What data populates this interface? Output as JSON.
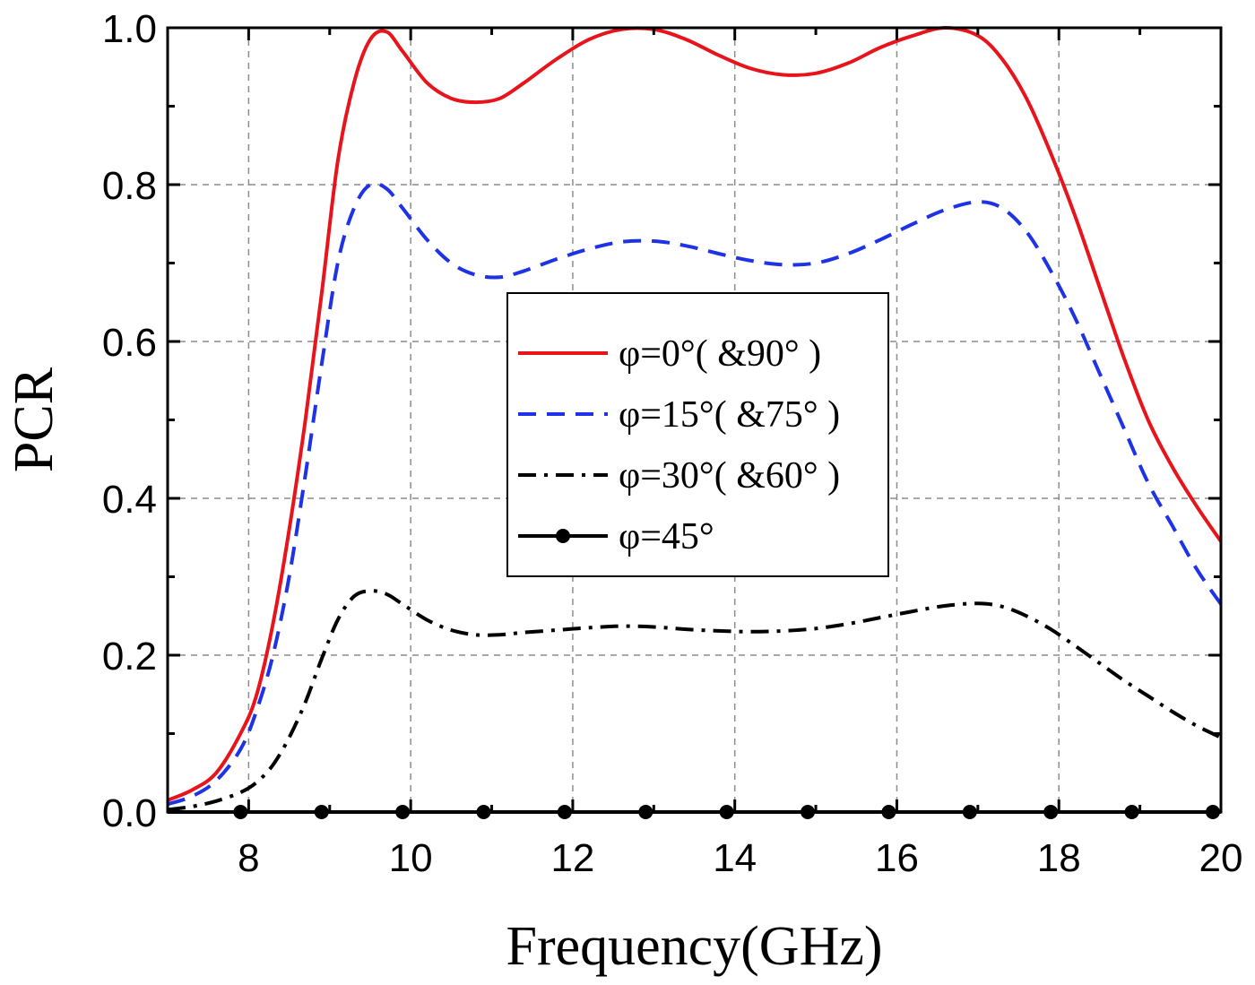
{
  "chart_data": {
    "type": "line",
    "title": "",
    "xlabel": "Frequency(GHz)",
    "ylabel": "PCR",
    "xlim": [
      7,
      20
    ],
    "ylim": [
      0,
      1.0
    ],
    "xticks": [
      8,
      10,
      12,
      14,
      16,
      18,
      20
    ],
    "xtick_labels": [
      "8",
      "10",
      "12",
      "14",
      "16",
      "18",
      "20"
    ],
    "yticks": [
      0,
      0.2,
      0.4,
      0.6,
      0.8,
      1.0
    ],
    "ytick_labels": [
      "0.0",
      "0.2",
      "0.4",
      "0.6",
      "0.8",
      "1.0"
    ],
    "grid": true,
    "legend_position": "center",
    "series": [
      {
        "name": "φ=0°( &90° )",
        "color": "#e8141b",
        "style": "solid",
        "x": [
          7.0,
          7.3,
          7.6,
          7.9,
          8.1,
          8.3,
          8.5,
          8.7,
          8.9,
          9.1,
          9.3,
          9.5,
          9.7,
          9.9,
          10.2,
          10.5,
          10.8,
          11.1,
          11.4,
          11.8,
          12.2,
          12.6,
          13.0,
          13.4,
          13.8,
          14.2,
          14.6,
          15.0,
          15.4,
          15.8,
          16.2,
          16.6,
          17.0,
          17.3,
          17.6,
          17.9,
          18.2,
          18.5,
          18.8,
          19.1,
          19.4,
          19.7,
          20.0
        ],
        "y": [
          0.015,
          0.028,
          0.05,
          0.1,
          0.15,
          0.24,
          0.36,
          0.5,
          0.66,
          0.83,
          0.93,
          0.985,
          0.995,
          0.97,
          0.93,
          0.91,
          0.905,
          0.91,
          0.93,
          0.96,
          0.985,
          0.998,
          0.998,
          0.985,
          0.965,
          0.948,
          0.94,
          0.942,
          0.955,
          0.975,
          0.99,
          1.0,
          0.99,
          0.96,
          0.91,
          0.84,
          0.76,
          0.67,
          0.58,
          0.5,
          0.44,
          0.39,
          0.345
        ]
      },
      {
        "name": "φ=15°( &75° )",
        "color": "#1f33e6",
        "style": "dashed",
        "x": [
          7.0,
          7.3,
          7.6,
          7.9,
          8.1,
          8.3,
          8.5,
          8.7,
          8.9,
          9.1,
          9.3,
          9.5,
          9.7,
          9.9,
          10.2,
          10.5,
          10.8,
          11.1,
          11.4,
          11.8,
          12.2,
          12.6,
          13.0,
          13.4,
          13.8,
          14.2,
          14.6,
          15.0,
          15.4,
          15.8,
          16.2,
          16.6,
          17.0,
          17.3,
          17.6,
          17.9,
          18.2,
          18.5,
          18.8,
          19.1,
          19.4,
          19.7,
          20.0
        ],
        "y": [
          0.01,
          0.02,
          0.04,
          0.08,
          0.13,
          0.2,
          0.3,
          0.43,
          0.57,
          0.7,
          0.77,
          0.8,
          0.795,
          0.77,
          0.73,
          0.7,
          0.685,
          0.682,
          0.69,
          0.705,
          0.718,
          0.727,
          0.728,
          0.722,
          0.712,
          0.703,
          0.698,
          0.7,
          0.712,
          0.73,
          0.75,
          0.768,
          0.778,
          0.77,
          0.74,
          0.69,
          0.63,
          0.56,
          0.49,
          0.42,
          0.365,
          0.31,
          0.265
        ]
      },
      {
        "name": "φ=30°( &60° )",
        "color": "#000000",
        "style": "dashdot",
        "x": [
          7.0,
          7.3,
          7.6,
          7.9,
          8.1,
          8.3,
          8.5,
          8.7,
          8.9,
          9.1,
          9.3,
          9.5,
          9.7,
          9.9,
          10.2,
          10.5,
          10.8,
          11.1,
          11.4,
          11.8,
          12.2,
          12.6,
          13.0,
          13.4,
          13.8,
          14.2,
          14.6,
          15.0,
          15.4,
          15.8,
          16.2,
          16.6,
          17.0,
          17.3,
          17.6,
          17.9,
          18.2,
          18.5,
          18.8,
          19.1,
          19.4,
          19.7,
          20.0
        ],
        "y": [
          0.003,
          0.007,
          0.014,
          0.025,
          0.038,
          0.06,
          0.095,
          0.14,
          0.195,
          0.245,
          0.275,
          0.282,
          0.278,
          0.265,
          0.245,
          0.232,
          0.226,
          0.226,
          0.229,
          0.232,
          0.235,
          0.237,
          0.236,
          0.233,
          0.231,
          0.23,
          0.231,
          0.234,
          0.24,
          0.248,
          0.256,
          0.263,
          0.266,
          0.262,
          0.25,
          0.233,
          0.212,
          0.19,
          0.168,
          0.148,
          0.128,
          0.11,
          0.095
        ]
      },
      {
        "name": "φ=45°",
        "color": "#000000",
        "style": "solid-marker",
        "x": [
          7.0,
          7.5,
          8.0,
          8.5,
          9.0,
          9.5,
          10.0,
          10.5,
          11.0,
          11.5,
          12.0,
          12.5,
          13.0,
          13.5,
          14.0,
          14.5,
          15.0,
          15.5,
          16.0,
          16.5,
          17.0,
          17.5,
          18.0,
          18.5,
          19.0,
          19.5,
          20.0
        ],
        "y": [
          0,
          0,
          0,
          0,
          0,
          0,
          0,
          0,
          0,
          0,
          0,
          0,
          0,
          0,
          0,
          0,
          0,
          0,
          0,
          0,
          0,
          0,
          0,
          0,
          0,
          0,
          0
        ],
        "marker_x": [
          7.9,
          8.9,
          9.9,
          10.9,
          11.9,
          12.9,
          13.9,
          14.9,
          15.9,
          16.9,
          17.9,
          18.9,
          19.9
        ]
      }
    ]
  }
}
